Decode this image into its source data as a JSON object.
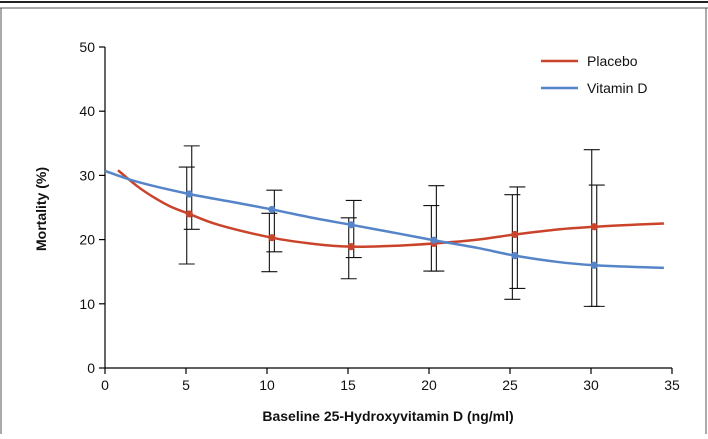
{
  "chart_data": {
    "type": "line",
    "xlabel": "Baseline 25-Hydroxyvitamin D (ng/ml)",
    "ylabel": "Mortality (%)",
    "xlim": [
      0,
      35
    ],
    "ylim": [
      0,
      50
    ],
    "xticks": [
      "0",
      "5",
      "10",
      "15",
      "20",
      "25",
      "30",
      "35"
    ],
    "yticks": [
      "0",
      "10",
      "20",
      "30",
      "40",
      "50"
    ],
    "grid": false,
    "legend_position": "top-right",
    "series": [
      {
        "name": "Placebo",
        "color": "#c9442b",
        "curve_x": [
          0.8,
          2,
          3,
          4,
          5.2,
          7,
          10.3,
          13,
          15.2,
          17.5,
          20.3,
          23,
          25.3,
          28,
          30.2,
          32.5,
          34.5
        ],
        "curve_y": [
          30.8,
          28.3,
          26.6,
          25.2,
          24.0,
          22.3,
          20.3,
          19.3,
          18.9,
          19.0,
          19.4,
          20.0,
          20.8,
          21.6,
          22.0,
          22.3,
          22.5
        ],
        "points_x": [
          5.2,
          10.3,
          15.2,
          20.3,
          25.3,
          30.2
        ],
        "points_y": [
          24.0,
          20.3,
          18.9,
          19.4,
          20.8,
          22.0
        ],
        "err_low": [
          16.2,
          15.0,
          13.9,
          15.1,
          10.7,
          9.6
        ],
        "err_high": [
          31.3,
          24.1,
          23.4,
          25.3,
          27.0,
          34.0
        ]
      },
      {
        "name": "Vitamin D",
        "color": "#5585c8",
        "curve_x": [
          0,
          2,
          5.2,
          8,
          10.3,
          13,
          15.2,
          18,
          20.3,
          23,
          25.3,
          28,
          30.2,
          32,
          34.5
        ],
        "curve_y": [
          30.7,
          29.0,
          27.1,
          25.8,
          24.7,
          23.3,
          22.3,
          21.0,
          19.9,
          18.7,
          17.5,
          16.5,
          16.0,
          15.8,
          15.6
        ],
        "points_x": [
          5.2,
          10.3,
          15.2,
          20.3,
          25.3,
          30.2
        ],
        "points_y": [
          27.1,
          24.7,
          22.3,
          19.9,
          17.5,
          16.0
        ],
        "err_low": [
          21.6,
          18.1,
          17.2,
          15.1,
          12.4,
          9.6
        ],
        "err_high": [
          34.6,
          27.7,
          26.1,
          28.4,
          28.2,
          28.5
        ]
      }
    ]
  }
}
